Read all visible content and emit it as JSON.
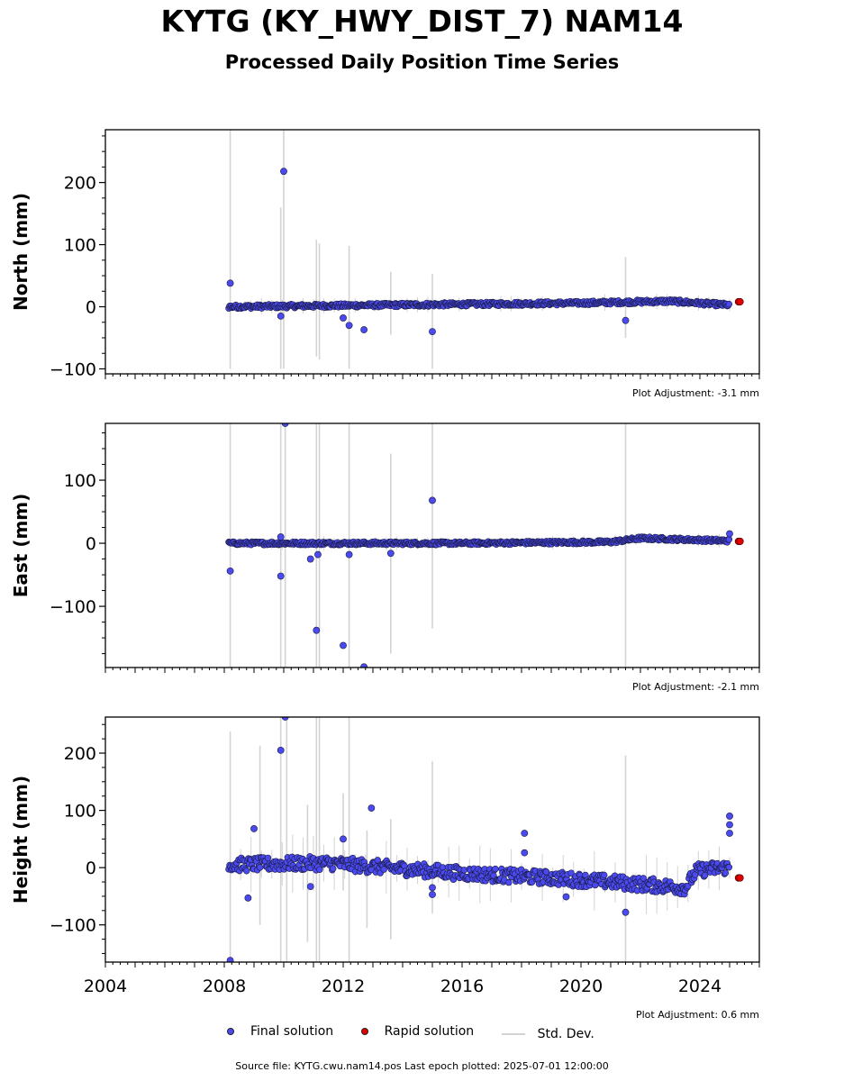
{
  "title": "KYTG (KY_HWY_DIST_7) NAM14",
  "subtitle": "Processed Daily Position Time Series",
  "footer": "Source file: KYTG.cwu.nam14.pos  Last epoch plotted: 2025-07-01 12:00:00",
  "legend": {
    "final": "Final solution",
    "rapid": "Rapid solution",
    "std": "Std. Dev."
  },
  "colors": {
    "final": "#4a4af0",
    "rapid": "#e00000",
    "std": "#d3d3d3"
  },
  "chart_data": [
    {
      "type": "scatter",
      "ylabel": "North (mm)",
      "ylim": [
        -108,
        285
      ],
      "xlim": [
        2004,
        2026
      ],
      "yticks": [
        "−100",
        "0",
        "100",
        "200"
      ],
      "ytick_values": [
        -100,
        0,
        100,
        200
      ],
      "adjustment": "Plot Adjustment: -3.1 mm",
      "trend": [
        [
          2008.2,
          0
        ],
        [
          2012,
          2
        ],
        [
          2016,
          4
        ],
        [
          2020,
          6
        ],
        [
          2023,
          9
        ],
        [
          2024.9,
          3
        ]
      ],
      "scatter_amp": 3,
      "outliers": [
        [
          2008.2,
          38
        ],
        [
          2010.0,
          218
        ],
        [
          2009.9,
          -15
        ],
        [
          2012.0,
          -18
        ],
        [
          2012.2,
          -30
        ],
        [
          2012.7,
          -37
        ],
        [
          2015.0,
          -40
        ],
        [
          2021.5,
          -22
        ]
      ],
      "std_bars": [
        [
          2008.2,
          -100,
          285
        ],
        [
          2009.9,
          -100,
          160
        ],
        [
          2010.0,
          -100,
          285
        ],
        [
          2011.1,
          -80,
          108
        ],
        [
          2011.2,
          -85,
          102
        ],
        [
          2012.2,
          -100,
          98
        ],
        [
          2013.6,
          -45,
          56
        ],
        [
          2015.0,
          -100,
          53
        ],
        [
          2021.5,
          -50,
          80
        ]
      ],
      "rapid": [
        [
          2025.3,
          8
        ],
        [
          2025.35,
          8
        ]
      ]
    },
    {
      "type": "scatter",
      "ylabel": "East (mm)",
      "ylim": [
        -197,
        190
      ],
      "xlim": [
        2004,
        2026
      ],
      "yticks": [
        "−100",
        "0",
        "100"
      ],
      "ytick_values": [
        -100,
        0,
        100
      ],
      "adjustment": "Plot Adjustment: -2.1 mm",
      "trend": [
        [
          2008.2,
          0
        ],
        [
          2016,
          0
        ],
        [
          2021,
          2
        ],
        [
          2022,
          8
        ],
        [
          2024.9,
          4
        ]
      ],
      "scatter_amp": 2.5,
      "outliers": [
        [
          2008.2,
          -44
        ],
        [
          2009.9,
          -52
        ],
        [
          2009.9,
          10
        ],
        [
          2010.05,
          190
        ],
        [
          2010.9,
          -25
        ],
        [
          2011.15,
          -18
        ],
        [
          2011.1,
          -138
        ],
        [
          2012.0,
          -162
        ],
        [
          2012.2,
          -18
        ],
        [
          2012.7,
          -196
        ],
        [
          2013.6,
          -16
        ],
        [
          2015.0,
          68
        ],
        [
          2025.0,
          15
        ]
      ],
      "std_bars": [
        [
          2008.2,
          -197,
          190
        ],
        [
          2009.9,
          -197,
          190
        ],
        [
          2010.05,
          -197,
          190
        ],
        [
          2011.1,
          -197,
          190
        ],
        [
          2011.2,
          -197,
          190
        ],
        [
          2012.2,
          -197,
          190
        ],
        [
          2013.6,
          -175,
          142
        ],
        [
          2015.0,
          -135,
          190
        ],
        [
          2021.5,
          -197,
          190
        ]
      ],
      "rapid": [
        [
          2025.3,
          3
        ],
        [
          2025.35,
          3
        ]
      ]
    },
    {
      "type": "scatter",
      "ylabel": "Height (mm)",
      "ylim": [
        -165,
        263
      ],
      "xlim": [
        2004,
        2026
      ],
      "yticks": [
        "−100",
        "0",
        "100",
        "200"
      ],
      "ytick_values": [
        -100,
        0,
        100,
        200
      ],
      "xticks": [
        "2004",
        "2008",
        "2012",
        "2016",
        "2020",
        "2024"
      ],
      "xtick_values": [
        2004,
        2008,
        2012,
        2016,
        2020,
        2024
      ],
      "adjustment": "Plot Adjustment: 0.6 mm",
      "trend": [
        [
          2008.2,
          5
        ],
        [
          2011.5,
          8
        ],
        [
          2014,
          -2
        ],
        [
          2016,
          -10
        ],
        [
          2019,
          -18
        ],
        [
          2021,
          -25
        ],
        [
          2023.5,
          -35
        ],
        [
          2023.9,
          -5
        ],
        [
          2024.8,
          0
        ]
      ],
      "scatter_amp": 12,
      "outliers": [
        [
          2008.2,
          -162
        ],
        [
          2008.8,
          -53
        ],
        [
          2009.0,
          68
        ],
        [
          2009.9,
          205
        ],
        [
          2010.05,
          263
        ],
        [
          2010.9,
          -33
        ],
        [
          2012.0,
          50
        ],
        [
          2012.95,
          104
        ],
        [
          2015.0,
          -47
        ],
        [
          2015.0,
          -35
        ],
        [
          2018.1,
          60
        ],
        [
          2018.1,
          26
        ],
        [
          2019.5,
          -51
        ],
        [
          2021.5,
          -78
        ],
        [
          2025.0,
          90
        ],
        [
          2025.0,
          60
        ],
        [
          2025.0,
          75
        ]
      ],
      "std_bars": [
        [
          2008.2,
          -165,
          238
        ],
        [
          2009.2,
          -100,
          213
        ],
        [
          2009.9,
          -165,
          263
        ],
        [
          2010.1,
          -165,
          263
        ],
        [
          2010.8,
          -130,
          110
        ],
        [
          2011.1,
          -165,
          263
        ],
        [
          2011.2,
          -165,
          263
        ],
        [
          2012.0,
          -40,
          130
        ],
        [
          2012.2,
          -165,
          263
        ],
        [
          2012.8,
          -105,
          65
        ],
        [
          2013.6,
          -125,
          85
        ],
        [
          2015.0,
          -80,
          186
        ],
        [
          2021.5,
          -165,
          196
        ]
      ],
      "rapid": [
        [
          2025.3,
          -18
        ],
        [
          2025.35,
          -18
        ]
      ]
    }
  ]
}
